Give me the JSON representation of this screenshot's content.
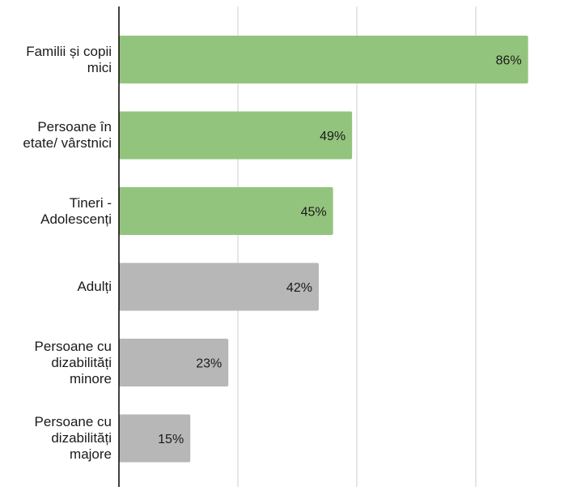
{
  "chart_data": {
    "type": "bar",
    "orientation": "horizontal",
    "categories": [
      "Familii și copii mici",
      "Persoane în etate/ vârstnici",
      "Tineri - Adolescenți",
      "Adulți",
      "Persoane cu dizabilități minore",
      "Persoane cu dizabilități majore"
    ],
    "values": [
      86,
      49,
      45,
      42,
      23,
      15
    ],
    "value_labels": [
      "86%",
      "49%",
      "45%",
      "42%",
      "23%",
      "15%"
    ],
    "bar_colors": [
      "#93c47d",
      "#93c47d",
      "#93c47d",
      "#b7b7b7",
      "#b7b7b7",
      "#b7b7b7"
    ],
    "xlim": [
      0,
      100
    ],
    "grid": true,
    "grid_color": "#cccccc",
    "axis_color": "#000000",
    "title": "",
    "xlabel": "",
    "ylabel": ""
  }
}
